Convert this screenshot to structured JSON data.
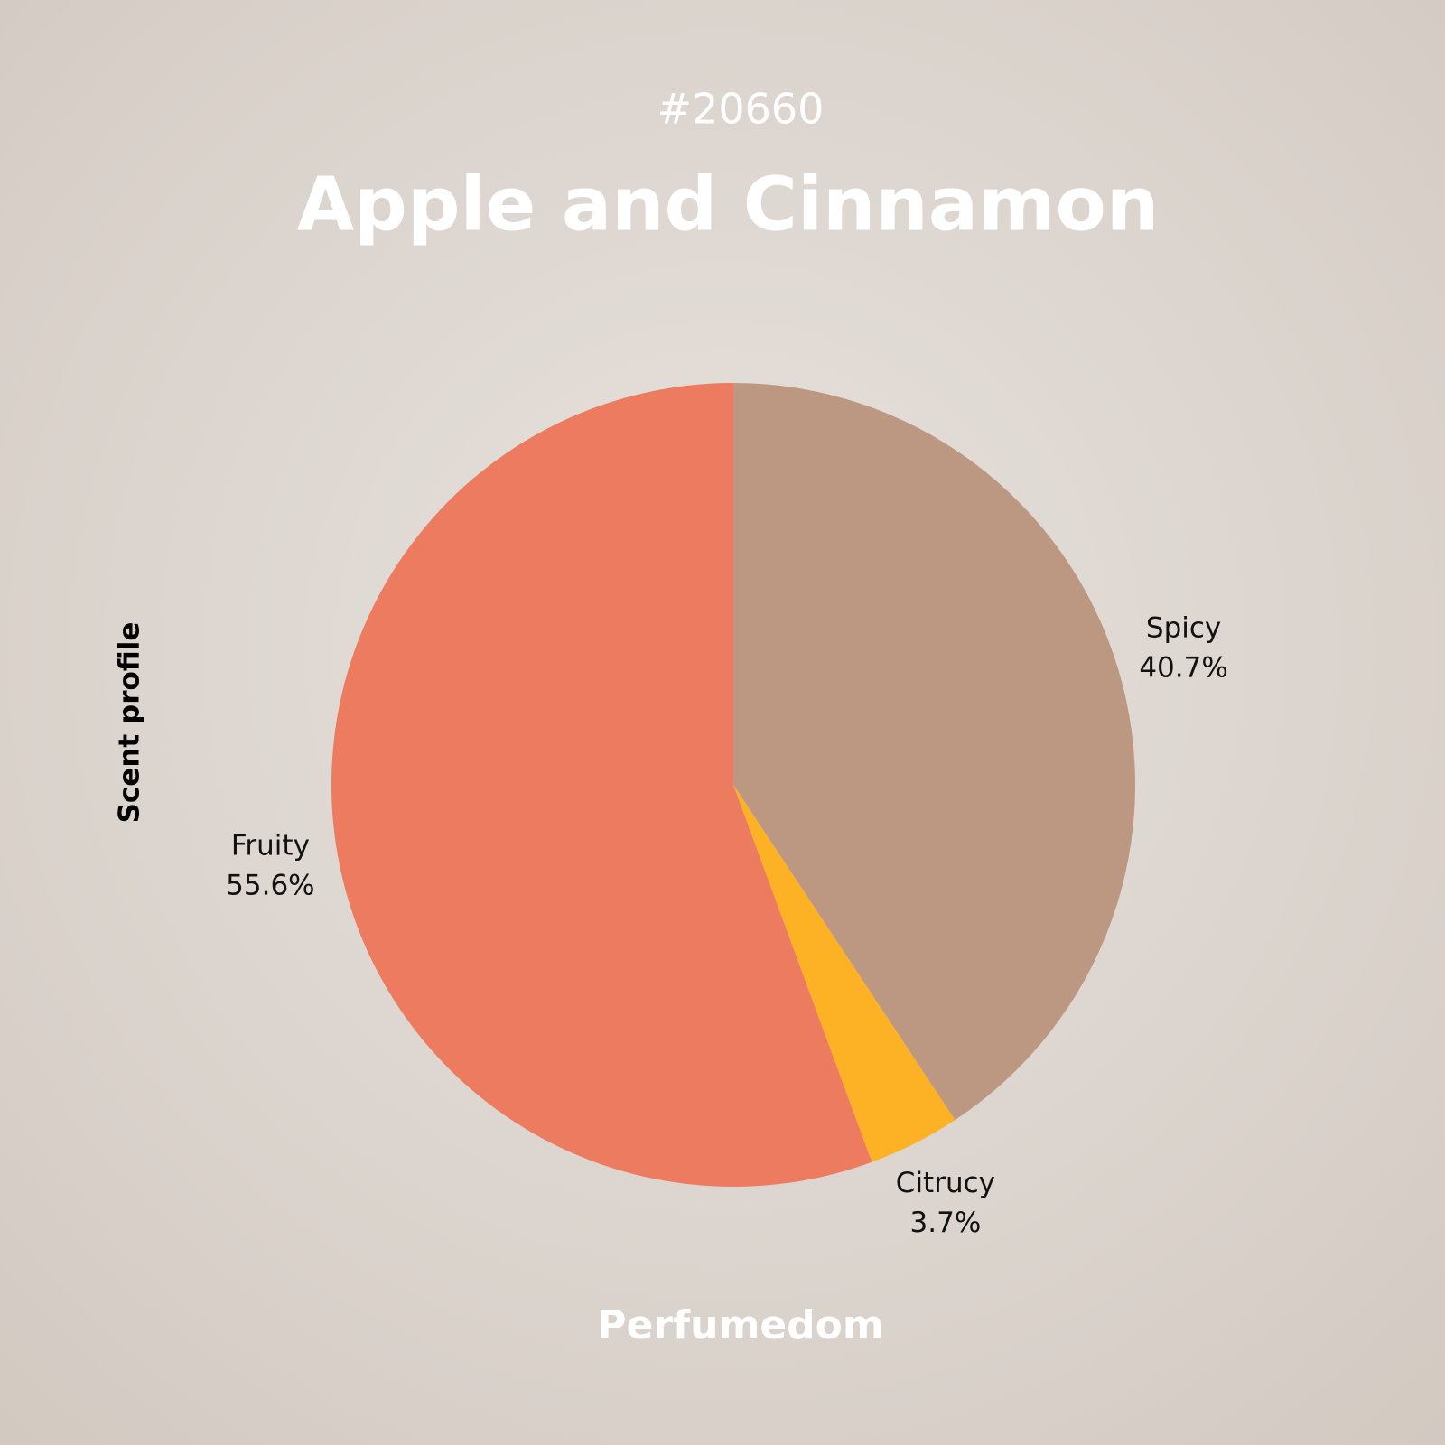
{
  "chart_data": {
    "type": "pie",
    "subtitle": "#20660",
    "title": "Apple and Cinnamon",
    "y_label": "Scent profile",
    "footer": "Perfumedom",
    "categories": [
      "Spicy",
      "Citrucy",
      "Fruity"
    ],
    "values": [
      40.7,
      3.7,
      55.6
    ],
    "value_labels": [
      "40.7%",
      "3.7%",
      "55.6%"
    ],
    "colors": [
      "#bc9882",
      "#fdb124",
      "#ec7b60"
    ]
  }
}
